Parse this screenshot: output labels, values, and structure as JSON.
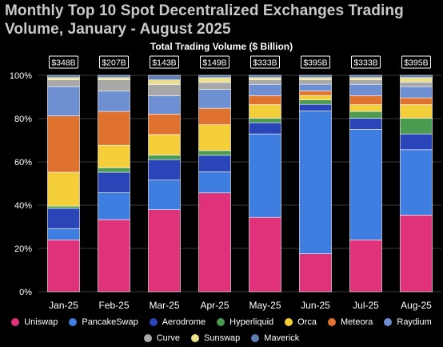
{
  "title": "Monthly Top 10 Spot Decentralized Exchanges Trading Volume, January - August 2025",
  "chart_data": {
    "type": "bar",
    "stacked": true,
    "normalized": true,
    "subtitle": "Total Trading Volume ($ Billion)",
    "categories": [
      "Jan-25",
      "Feb-25",
      "Mar-25",
      "Apr-25",
      "May-25",
      "Jun-25",
      "Jul-25",
      "Aug-25"
    ],
    "totals": [
      "$348B",
      "$207B",
      "$143B",
      "$149B",
      "$333B",
      "$395B",
      "$333B",
      "$395B"
    ],
    "yticks": [
      "0%",
      "20%",
      "40%",
      "60%",
      "80%",
      "100%"
    ],
    "ylim": [
      0,
      100
    ],
    "grid": true,
    "legend_position": "bottom",
    "series": [
      {
        "name": "Uniswap",
        "color": "#e0327a",
        "values": [
          23,
          32,
          36,
          42,
          33,
          17,
          23,
          34
        ]
      },
      {
        "name": "PancakeSwap",
        "color": "#3d7ee0",
        "values": [
          5,
          12,
          13,
          9,
          37,
          64,
          49,
          29
        ]
      },
      {
        "name": "Aerodrome",
        "color": "#2a45b8",
        "values": [
          9,
          9,
          9,
          7,
          5,
          3,
          5,
          7
        ]
      },
      {
        "name": "Hyperliquid",
        "color": "#4a9b4f",
        "values": [
          1,
          2,
          2,
          2,
          2,
          2,
          3,
          7
        ]
      },
      {
        "name": "Orca",
        "color": "#f5cf3a",
        "values": [
          15,
          10,
          9,
          11,
          6,
          2,
          3,
          6
        ]
      },
      {
        "name": "Meteora",
        "color": "#e0722f",
        "values": [
          25,
          15,
          9,
          7,
          4,
          2,
          4,
          3
        ]
      },
      {
        "name": "Raydium",
        "color": "#6e90d2",
        "values": [
          13,
          9,
          8,
          8,
          5,
          3,
          5,
          5
        ]
      },
      {
        "name": "Curve",
        "color": "#a8a8a8",
        "values": [
          3,
          5,
          5,
          3,
          2,
          2,
          2,
          2
        ]
      },
      {
        "name": "Sunswap",
        "color": "#ede08a",
        "values": [
          1,
          1,
          2,
          2,
          1,
          1,
          1,
          2
        ]
      },
      {
        "name": "Maverick",
        "color": "#5e7eb3",
        "values": [
          1,
          1,
          2,
          1,
          1,
          1,
          1,
          1
        ]
      }
    ]
  },
  "legend": {
    "row1": [
      "Uniswap",
      "PancakeSwap",
      "Aerodrome",
      "Hyperliquid",
      "Orca",
      "Meteora",
      "Raydium"
    ],
    "row2": [
      "Curve",
      "Sunswap",
      "Maverick"
    ]
  }
}
